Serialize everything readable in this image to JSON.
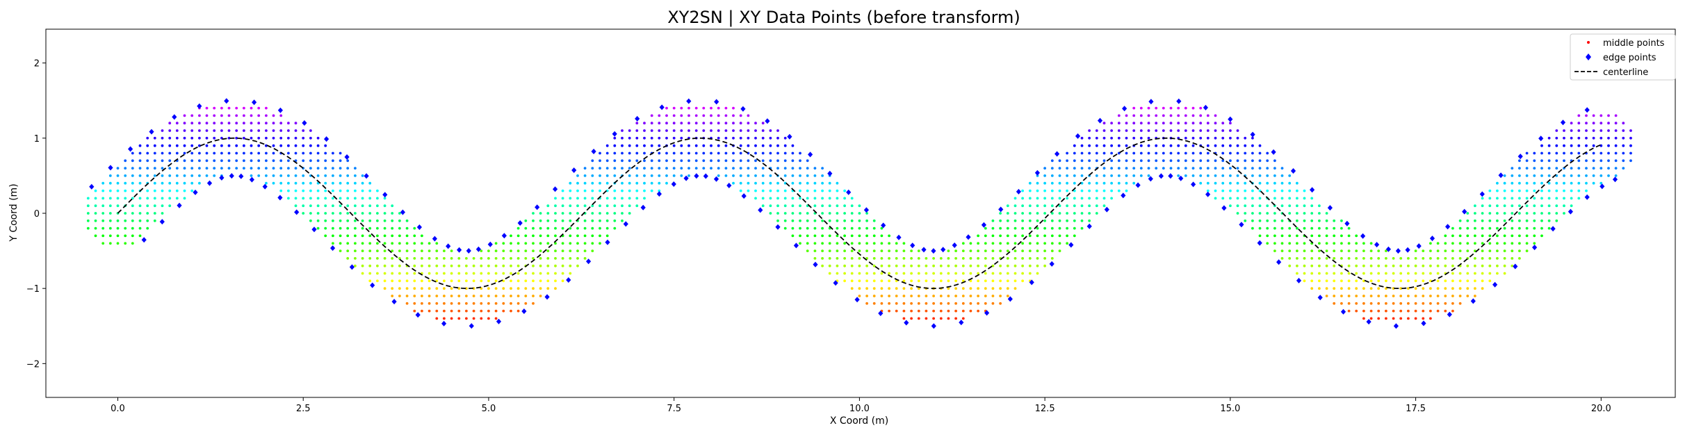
{
  "chart_data": {
    "type": "scatter",
    "title": "XY2SN | XY Data Points (before transform)",
    "xlabel": "X Coord (m)",
    "ylabel": "Y Coord (m)",
    "xlim": [
      -0.97,
      21.0
    ],
    "ylim": [
      -2.45,
      2.45
    ],
    "xticks": [
      0.0,
      2.5,
      5.0,
      7.5,
      10.0,
      12.5,
      15.0,
      17.5,
      20.0
    ],
    "xtick_labels": [
      "0.0",
      "2.5",
      "5.0",
      "7.5",
      "10.0",
      "12.5",
      "15.0",
      "17.5",
      "20.0"
    ],
    "yticks": [
      -2,
      -1,
      0,
      1,
      2
    ],
    "ytick_labels": [
      "−2",
      "−1",
      "0",
      "1",
      "2"
    ],
    "grid": false,
    "legend_position": "top-right",
    "centerline": {
      "function": "y = sin(x)",
      "x_range": [
        0.0,
        20.0
      ],
      "color": "#000000",
      "style": "dashed"
    },
    "channel_half_width": 0.5,
    "grid_spacing": 0.1,
    "sample_spacing_along": 0.25,
    "colormap": "gist_rainbow (red at y=-1.5 → magenta at y=+1.5)",
    "edge_point_color": "#0000ff",
    "series": [
      {
        "name": "middle points",
        "marker": "point",
        "description": "grid points strictly inside channel |y - sin(x)| < 0.5, colored by y"
      },
      {
        "name": "edge points",
        "marker": "diamond",
        "color": "#0000ff",
        "description": "points offset ±0.5 m perpendicular to centerline, every 0.25 m along x"
      },
      {
        "name": "centerline",
        "marker": "dashed-line",
        "color": "#000000",
        "description": "y = sin(x)"
      }
    ]
  }
}
